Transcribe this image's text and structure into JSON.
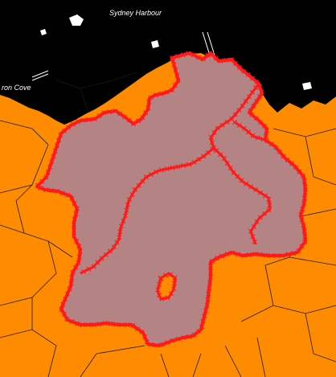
{
  "map": {
    "labels": {
      "harbour": "Sydney Harbour",
      "cove": "ron Cove"
    },
    "colors": {
      "land": "#ff8c00",
      "water": "#000000",
      "boundary": "#1a1a1a",
      "region_fill": "#b48484",
      "region_outline": "#ff1a1a",
      "label_text": "#ffffff"
    },
    "marker_symbol": "×",
    "layers": [
      "suburb-boundaries",
      "water",
      "selected-region"
    ]
  }
}
